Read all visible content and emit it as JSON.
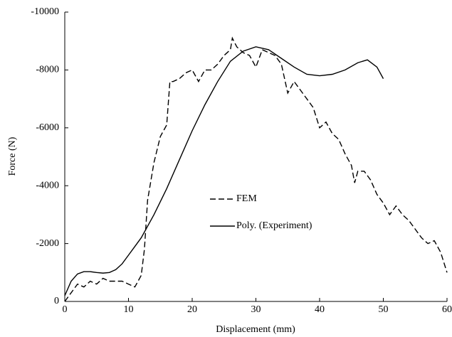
{
  "chart_data": {
    "type": "line",
    "x_label": "Displacement (mm)",
    "y_label": "Force (N)",
    "xlim": [
      0,
      60
    ],
    "xticks": [
      0,
      10,
      20,
      30,
      40,
      50,
      60
    ],
    "ylim": [
      0,
      -10000
    ],
    "yticks": [
      0,
      -2000,
      -4000,
      -6000,
      -8000,
      -10000
    ],
    "grid": false,
    "legend": "center",
    "series": [
      {
        "name": "FEM",
        "color": "#000000",
        "dash": "dashed",
        "x": [
          0,
          1,
          2,
          3,
          4,
          5,
          6,
          7,
          8,
          9,
          10,
          11,
          12,
          12.5,
          13,
          14,
          15,
          16,
          16.5,
          17,
          18,
          19,
          20,
          21,
          22,
          23,
          24,
          25,
          26,
          26.3,
          27,
          28,
          29,
          30,
          31,
          32,
          33,
          34,
          35,
          36,
          37,
          38,
          39,
          40,
          41,
          42,
          43,
          44,
          45,
          45.5,
          46,
          47,
          48,
          49,
          50,
          51,
          52,
          53,
          54,
          55,
          56,
          57,
          58,
          59,
          60
        ],
        "values": [
          0,
          -300,
          -600,
          -500,
          -700,
          -600,
          -800,
          -700,
          -700,
          -700,
          -600,
          -500,
          -900,
          -1800,
          -3500,
          -4800,
          -5700,
          -6100,
          -7600,
          -7600,
          -7700,
          -7900,
          -8000,
          -7600,
          -8000,
          -8000,
          -8200,
          -8500,
          -8700,
          -9100,
          -8800,
          -8600,
          -8500,
          -8100,
          -8700,
          -8600,
          -8500,
          -8200,
          -7200,
          -7600,
          -7300,
          -7000,
          -6700,
          -6000,
          -6200,
          -5800,
          -5600,
          -5100,
          -4700,
          -4100,
          -4500,
          -4500,
          -4200,
          -3700,
          -3400,
          -3000,
          -3300,
          -3000,
          -2800,
          -2500,
          -2200,
          -2000,
          -2100,
          -1700,
          -1000
        ]
      },
      {
        "name": "Poly. (Experiment)",
        "color": "#000000",
        "dash": "solid",
        "x": [
          0,
          1,
          2,
          3,
          4,
          5,
          6,
          7,
          8,
          9,
          10,
          11,
          12,
          14,
          16,
          18,
          20,
          22,
          24,
          26,
          28,
          30,
          32,
          34,
          36,
          38,
          40,
          42,
          44,
          46,
          47.5,
          49,
          50
        ],
        "values": [
          -200,
          -700,
          -950,
          -1030,
          -1030,
          -1000,
          -980,
          -1000,
          -1100,
          -1300,
          -1600,
          -1900,
          -2200,
          -3000,
          -3900,
          -4900,
          -5900,
          -6800,
          -7600,
          -8300,
          -8650,
          -8800,
          -8700,
          -8400,
          -8100,
          -7850,
          -7800,
          -7850,
          -8000,
          -8250,
          -8350,
          -8100,
          -7700
        ]
      }
    ]
  }
}
